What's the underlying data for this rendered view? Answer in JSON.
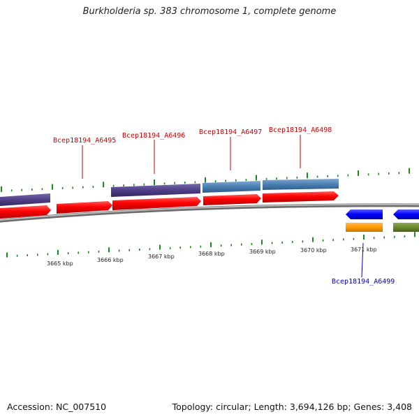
{
  "title": "Burkholderia sp. 383 chromosome 1, complete genome",
  "accession": "Accession: NC_007510",
  "topology": "Topology: circular; Length: 3,694,126 bp; Genes: 3,408",
  "colors": {
    "forward_gene_label": "#cc0000",
    "reverse_gene_label": "#0000cc",
    "tick": "#1a8a1a",
    "backbone": "#8a8a8a"
  },
  "ruler": {
    "ticks": [
      {
        "label": "3665 kbp"
      },
      {
        "label": "3666 kbp"
      },
      {
        "label": "3667 kbp"
      },
      {
        "label": "3668 kbp"
      },
      {
        "label": "3669 kbp"
      },
      {
        "label": "3670 kbp"
      },
      {
        "label": "3671 kbp"
      }
    ]
  },
  "gene_labels": [
    {
      "name": "Bcep18194_A6495",
      "strand": "forward"
    },
    {
      "name": "Bcep18194_A6496",
      "strand": "forward"
    },
    {
      "name": "Bcep18194_A6497",
      "strand": "forward"
    },
    {
      "name": "Bcep18194_A6498",
      "strand": "forward"
    },
    {
      "name": "Bcep18194_A6499",
      "strand": "reverse"
    }
  ]
}
